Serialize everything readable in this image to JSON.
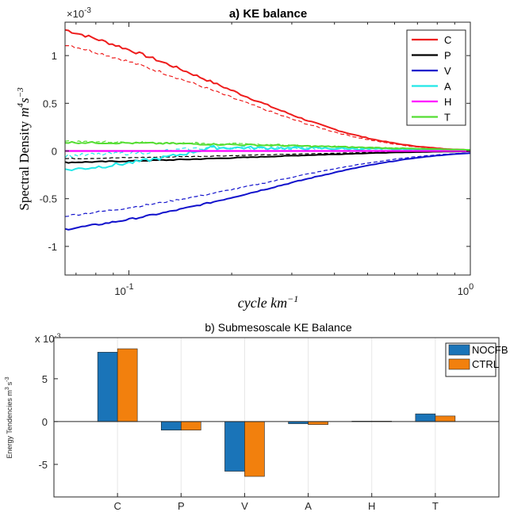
{
  "chart_data": [
    {
      "type": "line",
      "title": "a) KE balance",
      "xlabel": "cycle km",
      "xlabel_sup": "−1",
      "ylabel": "Spectral Density",
      "ylabel_unit": "m",
      "ylabel_unit_sup1": "4",
      "ylabel_unit_s": "s",
      "ylabel_unit_sup2": "−3",
      "exponent_label": "×10",
      "exponent_sup": "-3",
      "xscale": "log",
      "xlim": [
        0.065,
        1.0
      ],
      "ylim": [
        -1.3,
        1.35
      ],
      "yticks": [
        -1,
        -0.5,
        0,
        0.5,
        1
      ],
      "ytick_labels": [
        "-1",
        "-0.5",
        "0",
        "0.5",
        "1"
      ],
      "xtick_labels": [
        {
          "base": "10",
          "exp": "-1",
          "value": 0.1
        },
        {
          "base": "10",
          "exp": "0",
          "value": 1.0
        }
      ],
      "legend_position": "top-right",
      "grid": false,
      "series": [
        {
          "name": "C",
          "color": "#ee1c1c",
          "amp": 1.27,
          "dash_amp": 1.12,
          "decay": 4.8,
          "noise": 0.035
        },
        {
          "name": "P",
          "color": "#000000",
          "amp": -0.12,
          "dash_amp": -0.08,
          "decay": 3.5,
          "noise": 0.012
        },
        {
          "name": "V",
          "color": "#1111cc",
          "amp": -0.82,
          "dash_amp": -0.68,
          "decay": 3.6,
          "noise": 0.02
        },
        {
          "name": "A",
          "color": "#22e8e8",
          "amp": -0.2,
          "dash_amp": -0.05,
          "decay": 0.0,
          "noise": 0.04
        },
        {
          "name": "H",
          "color": "#ff00ff",
          "amp": 0.0,
          "dash_amp": 0.0,
          "decay": 0.0,
          "noise": 0.0
        },
        {
          "name": "T",
          "color": "#55dd33",
          "amp": 0.09,
          "dash_amp": 0.1,
          "decay": 2.0,
          "noise": 0.02
        }
      ]
    },
    {
      "type": "bar",
      "title": "b) Submesoscale KE Balance",
      "categories": [
        "C",
        "P",
        "V",
        "A",
        "H",
        "T"
      ],
      "ylabel": "Energy Tendencies m",
      "ylabel_sup1": "3",
      "ylabel_s": "s",
      "ylabel_sup2": "-3",
      "exponent_label": "x 10",
      "exponent_sup": "-3",
      "ylim": [
        -8.8,
        9.8
      ],
      "yticks": [
        -5,
        0,
        5
      ],
      "ytick_labels": [
        "-5",
        "0",
        "5"
      ],
      "legend_position": "top-right",
      "grid": true,
      "series": [
        {
          "name": "NOCFB",
          "color": "#1a74b8",
          "values": [
            8.1,
            -1.0,
            -5.8,
            -0.25,
            0.05,
            0.9
          ]
        },
        {
          "name": "CTRL",
          "color": "#f2800d",
          "values": [
            8.5,
            -1.0,
            -6.4,
            -0.35,
            0.05,
            0.65
          ]
        }
      ]
    }
  ]
}
